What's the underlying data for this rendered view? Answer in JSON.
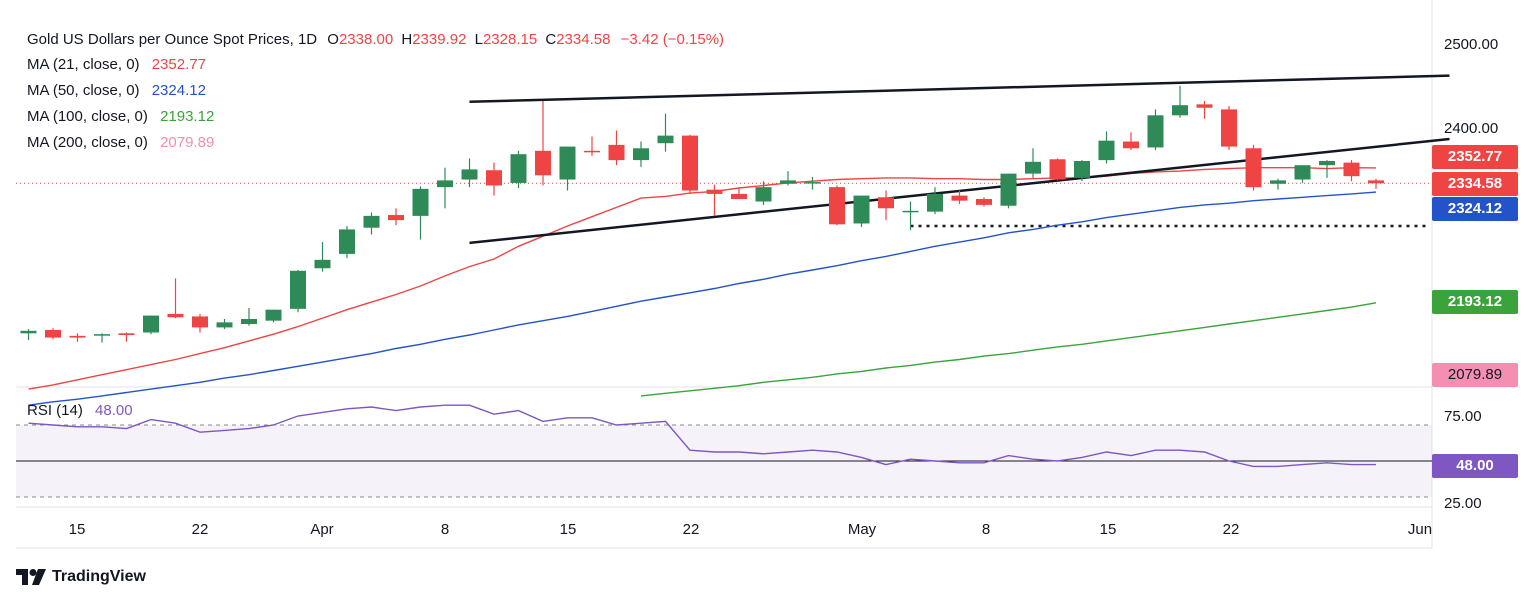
{
  "header": {
    "title": "Gold US Dollars per Ounce Spot Prices, 1D",
    "open_label": "O",
    "open": "2338.00",
    "high_label": "H",
    "high": "2339.92",
    "low_label": "L",
    "low": "2328.15",
    "close_label": "C",
    "close": "2334.58",
    "change": "−3.42 (−0.15%)"
  },
  "ma_legend": [
    {
      "label": "MA (21, close, 0)",
      "value": "2352.77",
      "color": "#ef4444"
    },
    {
      "label": "MA (50, close, 0)",
      "value": "2324.12",
      "color": "#2453c9"
    },
    {
      "label": "MA (100, close, 0)",
      "value": "2193.12",
      "color": "#3aa43a"
    },
    {
      "label": "MA (200, close, 0)",
      "value": "2079.89",
      "color": "#f28fa8"
    }
  ],
  "rsi_legend": {
    "label": "RSI (14)",
    "value": "48.00",
    "color": "#7e57c2"
  },
  "price_badges": [
    {
      "value": "2352.77",
      "color": "#ef4444"
    },
    {
      "value": "2334.58",
      "color": "#ef4444"
    },
    {
      "value": "2324.12",
      "color": "#2453c9"
    },
    {
      "value": "2193.12",
      "color": "#3aa43a"
    },
    {
      "value": "2079.89",
      "color": "#f28fa8"
    }
  ],
  "rsi_badge": {
    "value": "48.00",
    "color": "#7e57c2"
  },
  "logo_text": "TradingView",
  "chart_data": {
    "type": "candlestick",
    "up_color": "#2e8b57",
    "down_color": "#ef4444",
    "price_axis": {
      "ticks": [
        "2500.00",
        "2400.00"
      ]
    },
    "rsi_axis": {
      "ticks": [
        "75.00",
        "25.00"
      ],
      "band": [
        30,
        70
      ],
      "mid": 50
    },
    "x_ticks": [
      "15",
      "22",
      "Apr",
      "8",
      "15",
      "22",
      "May",
      "8",
      "15",
      "22",
      "Jun"
    ],
    "candles": [
      {
        "o": 2157,
        "h": 2162,
        "l": 2149,
        "c": 2160
      },
      {
        "o": 2161,
        "h": 2163,
        "l": 2150,
        "c": 2152
      },
      {
        "o": 2154,
        "h": 2157,
        "l": 2147,
        "c": 2152
      },
      {
        "o": 2155,
        "h": 2157,
        "l": 2146,
        "c": 2156
      },
      {
        "o": 2157,
        "h": 2158,
        "l": 2147,
        "c": 2155
      },
      {
        "o": 2158,
        "h": 2178,
        "l": 2156,
        "c": 2178
      },
      {
        "o": 2180,
        "h": 2222,
        "l": 2175,
        "c": 2176
      },
      {
        "o": 2177,
        "h": 2180,
        "l": 2158,
        "c": 2164
      },
      {
        "o": 2164,
        "h": 2174,
        "l": 2162,
        "c": 2170
      },
      {
        "o": 2168,
        "h": 2187,
        "l": 2166,
        "c": 2174
      },
      {
        "o": 2172,
        "h": 2185,
        "l": 2170,
        "c": 2185
      },
      {
        "o": 2186,
        "h": 2232,
        "l": 2182,
        "c": 2231
      },
      {
        "o": 2234,
        "h": 2265,
        "l": 2230,
        "c": 2244
      },
      {
        "o": 2251,
        "h": 2284,
        "l": 2246,
        "c": 2280
      },
      {
        "o": 2282,
        "h": 2300,
        "l": 2274,
        "c": 2296
      },
      {
        "o": 2297,
        "h": 2305,
        "l": 2285,
        "c": 2291
      },
      {
        "o": 2296,
        "h": 2331,
        "l": 2268,
        "c": 2328
      },
      {
        "o": 2330,
        "h": 2353,
        "l": 2305,
        "c": 2338
      },
      {
        "o": 2339,
        "h": 2364,
        "l": 2330,
        "c": 2351
      },
      {
        "o": 2350,
        "h": 2359,
        "l": 2320,
        "c": 2332
      },
      {
        "o": 2335,
        "h": 2373,
        "l": 2329,
        "c": 2369
      },
      {
        "o": 2373,
        "h": 2432,
        "l": 2332,
        "c": 2344
      },
      {
        "o": 2339,
        "h": 2378,
        "l": 2326,
        "c": 2378
      },
      {
        "o": 2373,
        "h": 2390,
        "l": 2367,
        "c": 2372
      },
      {
        "o": 2380,
        "h": 2397,
        "l": 2356,
        "c": 2362
      },
      {
        "o": 2362,
        "h": 2384,
        "l": 2354,
        "c": 2376
      },
      {
        "o": 2382,
        "h": 2417,
        "l": 2372,
        "c": 2391
      },
      {
        "o": 2391,
        "h": 2392,
        "l": 2322,
        "c": 2326
      },
      {
        "o": 2327,
        "h": 2333,
        "l": 2296,
        "c": 2322
      },
      {
        "o": 2322,
        "h": 2330,
        "l": 2317,
        "c": 2316
      },
      {
        "o": 2313,
        "h": 2337,
        "l": 2309,
        "c": 2330
      },
      {
        "o": 2334,
        "h": 2349,
        "l": 2332,
        "c": 2338
      },
      {
        "o": 2336,
        "h": 2342,
        "l": 2327,
        "c": 2336
      },
      {
        "o": 2330,
        "h": 2332,
        "l": 2285,
        "c": 2286
      },
      {
        "o": 2287,
        "h": 2320,
        "l": 2283,
        "c": 2320
      },
      {
        "o": 2318,
        "h": 2326,
        "l": 2291,
        "c": 2305
      },
      {
        "o": 2302,
        "h": 2313,
        "l": 2279,
        "c": 2302
      },
      {
        "o": 2301,
        "h": 2330,
        "l": 2298,
        "c": 2322
      },
      {
        "o": 2320,
        "h": 2326,
        "l": 2310,
        "c": 2314
      },
      {
        "o": 2316,
        "h": 2318,
        "l": 2307,
        "c": 2309
      },
      {
        "o": 2308,
        "h": 2346,
        "l": 2305,
        "c": 2346
      },
      {
        "o": 2346,
        "h": 2376,
        "l": 2341,
        "c": 2360
      },
      {
        "o": 2363,
        "h": 2364,
        "l": 2338,
        "c": 2339
      },
      {
        "o": 2341,
        "h": 2362,
        "l": 2337,
        "c": 2361
      },
      {
        "o": 2362,
        "h": 2396,
        "l": 2358,
        "c": 2385
      },
      {
        "o": 2384,
        "h": 2395,
        "l": 2374,
        "c": 2376
      },
      {
        "o": 2377,
        "h": 2422,
        "l": 2374,
        "c": 2415
      },
      {
        "o": 2415,
        "h": 2450,
        "l": 2412,
        "c": 2427
      },
      {
        "o": 2428,
        "h": 2432,
        "l": 2411,
        "c": 2424
      },
      {
        "o": 2422,
        "h": 2426,
        "l": 2374,
        "c": 2378
      },
      {
        "o": 2376,
        "h": 2380,
        "l": 2326,
        "c": 2330
      },
      {
        "o": 2334,
        "h": 2340,
        "l": 2327,
        "c": 2338
      },
      {
        "o": 2339,
        "h": 2355,
        "l": 2335,
        "c": 2356
      },
      {
        "o": 2356,
        "h": 2362,
        "l": 2341,
        "c": 2361
      },
      {
        "o": 2359,
        "h": 2362,
        "l": 2337,
        "c": 2343
      },
      {
        "o": 2338.0,
        "h": 2339.92,
        "l": 2328.15,
        "c": 2334.58
      }
    ],
    "ma21": [
      2091,
      2096,
      2102,
      2108,
      2114,
      2120,
      2126,
      2133,
      2140,
      2148,
      2156,
      2165,
      2175,
      2185,
      2194,
      2203,
      2213,
      2225,
      2236,
      2245,
      2260,
      2272,
      2284,
      2295,
      2306,
      2317,
      2319,
      2323,
      2325,
      2329,
      2332,
      2335,
      2337,
      2339,
      2340,
      2341,
      2341,
      2340,
      2340,
      2339,
      2339,
      2340,
      2341,
      2341,
      2343,
      2346,
      2348,
      2349,
      2351,
      2352,
      2353,
      2353,
      2353,
      2352,
      2353,
      2352.77
    ],
    "ma50": [
      2072,
      2076,
      2079,
      2083,
      2087,
      2091,
      2095,
      2099,
      2104,
      2108,
      2113,
      2118,
      2123,
      2128,
      2133,
      2139,
      2144,
      2150,
      2155,
      2161,
      2167,
      2172,
      2177,
      2183,
      2189,
      2195,
      2200,
      2205,
      2210,
      2216,
      2221,
      2227,
      2232,
      2237,
      2243,
      2248,
      2254,
      2260,
      2265,
      2270,
      2276,
      2280,
      2285,
      2289,
      2294,
      2298,
      2302,
      2306,
      2309,
      2311,
      2314,
      2316,
      2318,
      2320,
      2322,
      2324.12
    ],
    "ma100": [
      2083,
      2086,
      2089,
      2092,
      2095,
      2099,
      2102,
      2105,
      2109,
      2112,
      2116,
      2119,
      2123,
      2126,
      2130,
      2133,
      2137,
      2141,
      2144,
      2148,
      2152,
      2156,
      2160,
      2164,
      2168,
      2172,
      2176,
      2180,
      2184,
      2188,
      2193.12
    ],
    "ma200_value": 2079.89,
    "rsi": [
      71,
      70,
      69,
      69,
      68,
      73,
      71,
      66,
      67,
      68,
      70,
      75,
      77,
      79,
      80,
      78,
      80,
      81,
      81,
      76,
      78,
      72,
      74,
      74,
      70,
      71,
      72,
      56,
      55,
      55,
      54,
      55,
      56,
      55,
      52,
      48,
      51,
      50,
      49,
      49,
      53,
      51,
      50,
      52,
      55,
      53,
      56,
      56,
      55,
      50,
      47,
      47,
      48,
      49,
      48,
      48
    ],
    "trendlines": [
      {
        "from": [
          18,
          2431
        ],
        "to": [
          58,
          2462
        ]
      },
      {
        "from": [
          18,
          2264
        ],
        "to": [
          58,
          2387
        ]
      }
    ],
    "support_line": {
      "from_index": 36,
      "value": 2284
    }
  }
}
